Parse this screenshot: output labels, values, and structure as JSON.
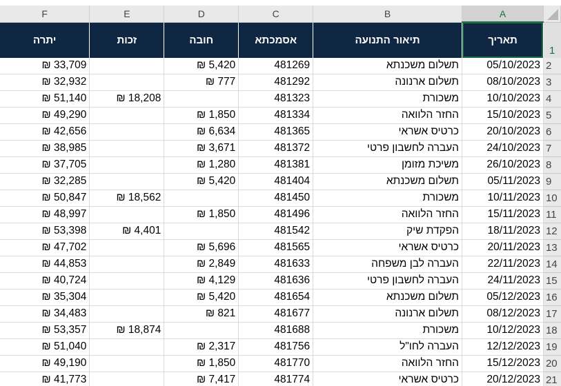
{
  "columns": {
    "letters": [
      "F",
      "E",
      "D",
      "C",
      "B",
      "A"
    ],
    "headers": [
      "יתרה",
      "זכות",
      "חובה",
      "אסמכתא",
      "תיאור התנועה",
      "תאריך"
    ],
    "header_row_number": "1",
    "selected_column": "A",
    "header_bg": "#0f2742",
    "select_accent": "#1e6e43"
  },
  "rows": [
    {
      "num": "2",
      "date": "05/10/2023",
      "desc": "תשלום משכנתא",
      "ref": "481269",
      "debit": "₪ 5,420",
      "credit": "",
      "balance": "₪ 33,709"
    },
    {
      "num": "3",
      "date": "08/10/2023",
      "desc": "תשלום ארנונה",
      "ref": "481292",
      "debit": "₪ 777",
      "credit": "",
      "balance": "₪ 32,932"
    },
    {
      "num": "4",
      "date": "10/10/2023",
      "desc": "משכורת",
      "ref": "481323",
      "debit": "",
      "credit": "₪ 18,208",
      "balance": "₪ 51,140"
    },
    {
      "num": "5",
      "date": "15/10/2023",
      "desc": "החזר הלוואה",
      "ref": "481334",
      "debit": "₪ 1,850",
      "credit": "",
      "balance": "₪ 49,290"
    },
    {
      "num": "6",
      "date": "20/10/2023",
      "desc": "כרטיס אשראי",
      "ref": "481365",
      "debit": "₪ 6,634",
      "credit": "",
      "balance": "₪ 42,656"
    },
    {
      "num": "7",
      "date": "24/10/2023",
      "desc": "העברה לחשבון פרטי",
      "ref": "481372",
      "debit": "₪ 3,671",
      "credit": "",
      "balance": "₪ 38,985"
    },
    {
      "num": "8",
      "date": "26/10/2023",
      "desc": "משיכת מזומן",
      "ref": "481381",
      "debit": "₪ 1,280",
      "credit": "",
      "balance": "₪ 37,705"
    },
    {
      "num": "9",
      "date": "05/11/2023",
      "desc": "תשלום משכנתא",
      "ref": "481404",
      "debit": "₪ 5,420",
      "credit": "",
      "balance": "₪ 32,285"
    },
    {
      "num": "10",
      "date": "10/11/2023",
      "desc": "משכורת",
      "ref": "481450",
      "debit": "",
      "credit": "₪ 18,562",
      "balance": "₪ 50,847"
    },
    {
      "num": "11",
      "date": "15/11/2023",
      "desc": "החזר הלוואה",
      "ref": "481496",
      "debit": "₪ 1,850",
      "credit": "",
      "balance": "₪ 48,997"
    },
    {
      "num": "12",
      "date": "18/11/2023",
      "desc": "הפקדת שיק",
      "ref": "481542",
      "debit": "",
      "credit": "₪ 4,401",
      "balance": "₪ 53,398"
    },
    {
      "num": "13",
      "date": "20/11/2023",
      "desc": "כרטיס אשראי",
      "ref": "481565",
      "debit": "₪ 5,696",
      "credit": "",
      "balance": "₪ 47,702"
    },
    {
      "num": "14",
      "date": "22/11/2023",
      "desc": "העברה לבן משפחה",
      "ref": "481633",
      "debit": "₪ 2,849",
      "credit": "",
      "balance": "₪ 44,853"
    },
    {
      "num": "15",
      "date": "24/11/2023",
      "desc": "העברה לחשבון פרטי",
      "ref": "481636",
      "debit": "₪ 4,129",
      "credit": "",
      "balance": "₪ 40,724"
    },
    {
      "num": "16",
      "date": "05/12/2023",
      "desc": "תשלום משכנתא",
      "ref": "481654",
      "debit": "₪ 5,420",
      "credit": "",
      "balance": "₪ 35,304"
    },
    {
      "num": "17",
      "date": "08/12/2023",
      "desc": "תשלום ארנונה",
      "ref": "481677",
      "debit": "₪ 821",
      "credit": "",
      "balance": "₪ 34,483"
    },
    {
      "num": "18",
      "date": "10/12/2023",
      "desc": "משכורת",
      "ref": "481688",
      "debit": "",
      "credit": "₪ 18,874",
      "balance": "₪ 53,357"
    },
    {
      "num": "19",
      "date": "12/12/2023",
      "desc": "העברה לחו\"ל",
      "ref": "481756",
      "debit": "₪ 2,317",
      "credit": "",
      "balance": "₪ 51,040"
    },
    {
      "num": "20",
      "date": "15/12/2023",
      "desc": "החזר הלוואה",
      "ref": "481770",
      "debit": "₪ 1,850",
      "credit": "",
      "balance": "₪ 49,190"
    },
    {
      "num": "21",
      "date": "20/12/2023",
      "desc": "כרטיס אשראי",
      "ref": "481774",
      "debit": "₪ 7,417",
      "credit": "",
      "balance": "₪ 41,773"
    }
  ]
}
